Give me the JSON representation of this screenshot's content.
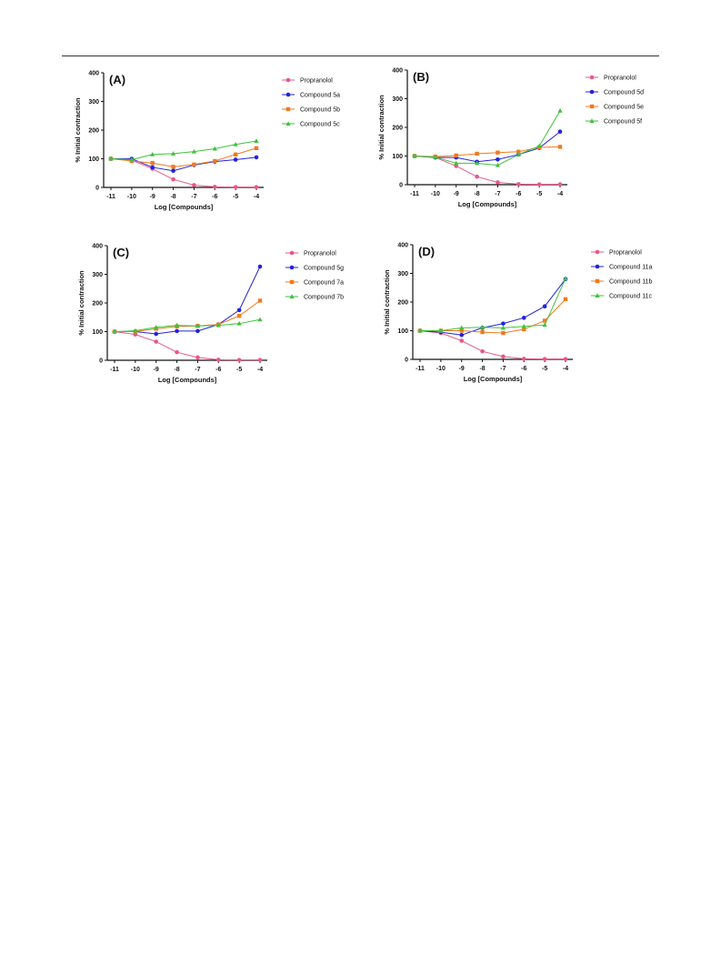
{
  "colors": {
    "Propranolol": "#e8578a",
    "blue": "#2222dd",
    "orange": "#f07a1e",
    "green": "#3ec23e"
  },
  "chart_data": [
    {
      "type": "line",
      "title": "(A)",
      "xlabel": "Log [Compounds]",
      "ylabel": "% Initial contraction",
      "x": [
        -11,
        -10,
        -9,
        -8,
        -7,
        -6,
        -5,
        -4
      ],
      "xticks": [
        "-11",
        "-10",
        "-9",
        "-8",
        "-7",
        "-6",
        "-5",
        "-4"
      ],
      "yticks": [
        "0",
        "100",
        "200",
        "300",
        "400"
      ],
      "ylim": [
        0,
        400
      ],
      "legend": "right",
      "series": [
        {
          "name": "Propranolol",
          "color": "#e8578a",
          "marker": "circle",
          "values": [
            100,
            95,
            65,
            28,
            8,
            2,
            1,
            1
          ]
        },
        {
          "name": "Compound 5a",
          "color": "#2222dd",
          "marker": "circle",
          "values": [
            100,
            100,
            70,
            58,
            78,
            90,
            97,
            105
          ]
        },
        {
          "name": "Compound 5b",
          "color": "#f07a1e",
          "marker": "square",
          "values": [
            100,
            92,
            85,
            72,
            80,
            92,
            115,
            137
          ]
        },
        {
          "name": "Compound 5c",
          "color": "#3ec23e",
          "marker": "triangle",
          "values": [
            100,
            97,
            115,
            118,
            125,
            135,
            150,
            162
          ]
        }
      ]
    },
    {
      "type": "line",
      "title": "(B)",
      "xlabel": "Log [Compounds]",
      "ylabel": "% Initial contraction",
      "x": [
        -11,
        -10,
        -9,
        -8,
        -7,
        -6,
        -5,
        -4
      ],
      "xticks": [
        "-11",
        "-10",
        "-9",
        "-8",
        "-7",
        "-6",
        "-5",
        "-4"
      ],
      "yticks": [
        "0",
        "100",
        "200",
        "300",
        "400"
      ],
      "ylim": [
        0,
        400
      ],
      "legend": "right",
      "series": [
        {
          "name": "Propranolol",
          "color": "#e8578a",
          "marker": "circle",
          "values": [
            100,
            95,
            65,
            28,
            8,
            2,
            1,
            1
          ]
        },
        {
          "name": "Compound 5d",
          "color": "#2222dd",
          "marker": "circle",
          "values": [
            100,
            95,
            95,
            80,
            88,
            105,
            128,
            185
          ]
        },
        {
          "name": "Compound 5e",
          "color": "#f07a1e",
          "marker": "square",
          "values": [
            100,
            98,
            102,
            108,
            112,
            115,
            130,
            132
          ]
        },
        {
          "name": "Compound 5f",
          "color": "#3ec23e",
          "marker": "triangle",
          "values": [
            100,
            96,
            75,
            75,
            68,
            105,
            135,
            258
          ]
        }
      ]
    },
    {
      "type": "line",
      "title": "(C)",
      "xlabel": "Log [Compounds]",
      "ylabel": "% Initial contraction",
      "x": [
        -11,
        -10,
        -9,
        -8,
        -7,
        -6,
        -5,
        -4
      ],
      "xticks": [
        "-11",
        "-10",
        "-9",
        "-8",
        "-7",
        "-6",
        "-5",
        "-4"
      ],
      "yticks": [
        "0",
        "100",
        "200",
        "300",
        "400"
      ],
      "ylim": [
        0,
        400
      ],
      "legend": "right",
      "series": [
        {
          "name": "Propranolol",
          "color": "#e8578a",
          "marker": "circle",
          "values": [
            100,
            90,
            65,
            28,
            10,
            2,
            1,
            1
          ]
        },
        {
          "name": "Compound 5g",
          "color": "#2222dd",
          "marker": "circle",
          "values": [
            100,
            100,
            92,
            102,
            102,
            125,
            175,
            327
          ]
        },
        {
          "name": "Compound 7a",
          "color": "#f07a1e",
          "marker": "square",
          "values": [
            100,
            100,
            110,
            118,
            120,
            125,
            155,
            208
          ]
        },
        {
          "name": "Compound 7b",
          "color": "#3ec23e",
          "marker": "triangle",
          "values": [
            100,
            103,
            115,
            122,
            120,
            122,
            128,
            142
          ]
        }
      ]
    },
    {
      "type": "line",
      "title": "(D)",
      "xlabel": "Log [Compounds]",
      "ylabel": "% Initial contraction",
      "x": [
        -11,
        -10,
        -9,
        -8,
        -7,
        -6,
        -5,
        -4
      ],
      "xticks": [
        "-11",
        "-10",
        "-9",
        "-8",
        "-7",
        "-6",
        "-5",
        "-4"
      ],
      "yticks": [
        "0",
        "100",
        "200",
        "300",
        "400"
      ],
      "ylim": [
        0,
        400
      ],
      "legend": "right",
      "series": [
        {
          "name": "Propranolol",
          "color": "#e8578a",
          "marker": "circle",
          "values": [
            100,
            92,
            65,
            28,
            10,
            2,
            1,
            1
          ]
        },
        {
          "name": "Compound 11a",
          "color": "#2222dd",
          "marker": "circle",
          "values": [
            100,
            95,
            85,
            110,
            125,
            145,
            185,
            280
          ]
        },
        {
          "name": "Compound 11b",
          "color": "#f07a1e",
          "marker": "square",
          "values": [
            100,
            100,
            100,
            95,
            92,
            105,
            135,
            210
          ]
        },
        {
          "name": "Compound 11c",
          "color": "#3ec23e",
          "marker": "triangle",
          "values": [
            100,
            100,
            110,
            112,
            110,
            115,
            120,
            282
          ]
        }
      ]
    }
  ]
}
